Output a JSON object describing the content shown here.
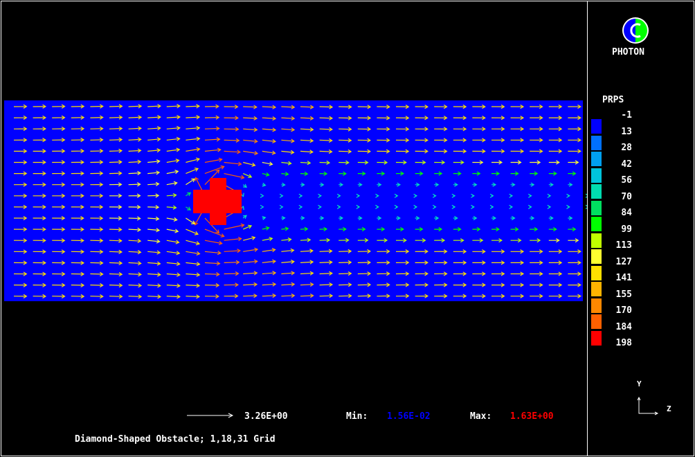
{
  "app": {
    "logo_text": "PHOTON"
  },
  "legend": {
    "title": "PRPS",
    "labels": [
      "-1",
      "13",
      "28",
      "42",
      "56",
      "70",
      "84",
      "99",
      "113",
      "127",
      "141",
      "155",
      "170",
      "184",
      "198"
    ],
    "colors": [
      "#0000ff",
      "#0070ff",
      "#00a0f0",
      "#00c4dc",
      "#00dcb0",
      "#00e060",
      "#00ff00",
      "#c0ff00",
      "#ffff30",
      "#ffe000",
      "#ffb400",
      "#ff8800",
      "#ff6000",
      "#ff0000"
    ]
  },
  "plot": {
    "background_color": "#0000ff",
    "obstacle_color": "#ff0000",
    "grid_rows": 18,
    "grid_cols": 31
  },
  "footer": {
    "ref_vector_value": "3.26E+00",
    "min_label": "Min:",
    "min_value": "1.56E-02",
    "max_label": "Max:",
    "max_value": "1.63E+00",
    "caption": "Diamond-Shaped Obstacle; 1,18,31 Grid"
  },
  "axes": {
    "vertical": "Y",
    "horizontal": "Z"
  }
}
